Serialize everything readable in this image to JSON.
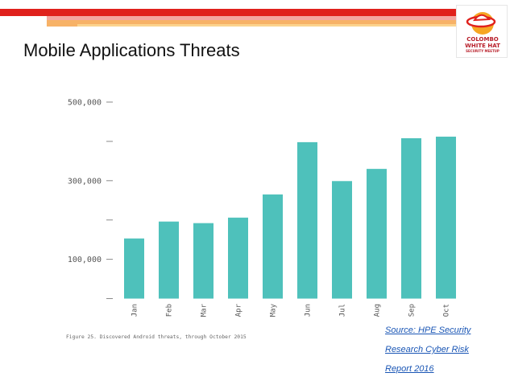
{
  "page": {
    "title": "Mobile Applications Threats"
  },
  "logo": {
    "text_lines": [
      "COLOMBO",
      "WHITE HAT",
      "SECURITY MEETUP"
    ]
  },
  "caption": "Figure 25. Discovered Android threats, through October 2015",
  "source": {
    "lines": [
      "Source: HPE Security",
      "Research Cyber Risk",
      "Report 2016"
    ]
  },
  "colors": {
    "bar": "#4ec1bb",
    "accent_red": "#e0211c"
  },
  "chart_data": {
    "type": "bar",
    "categories": [
      "Jan",
      "Feb",
      "Mar",
      "Apr",
      "May",
      "Jun",
      "Jul",
      "Aug",
      "Sep",
      "Oct"
    ],
    "values": [
      153000,
      196000,
      192000,
      206000,
      265000,
      398000,
      299000,
      330000,
      408000,
      412000
    ],
    "ylim": [
      0,
      500000
    ],
    "yticks": [
      0,
      100000,
      200000,
      300000,
      400000,
      500000
    ],
    "ytick_labels": [
      "",
      "100,000",
      "",
      "300,000",
      "",
      "500,000"
    ],
    "title": "",
    "xlabel": "",
    "ylabel": "",
    "grid": false
  }
}
